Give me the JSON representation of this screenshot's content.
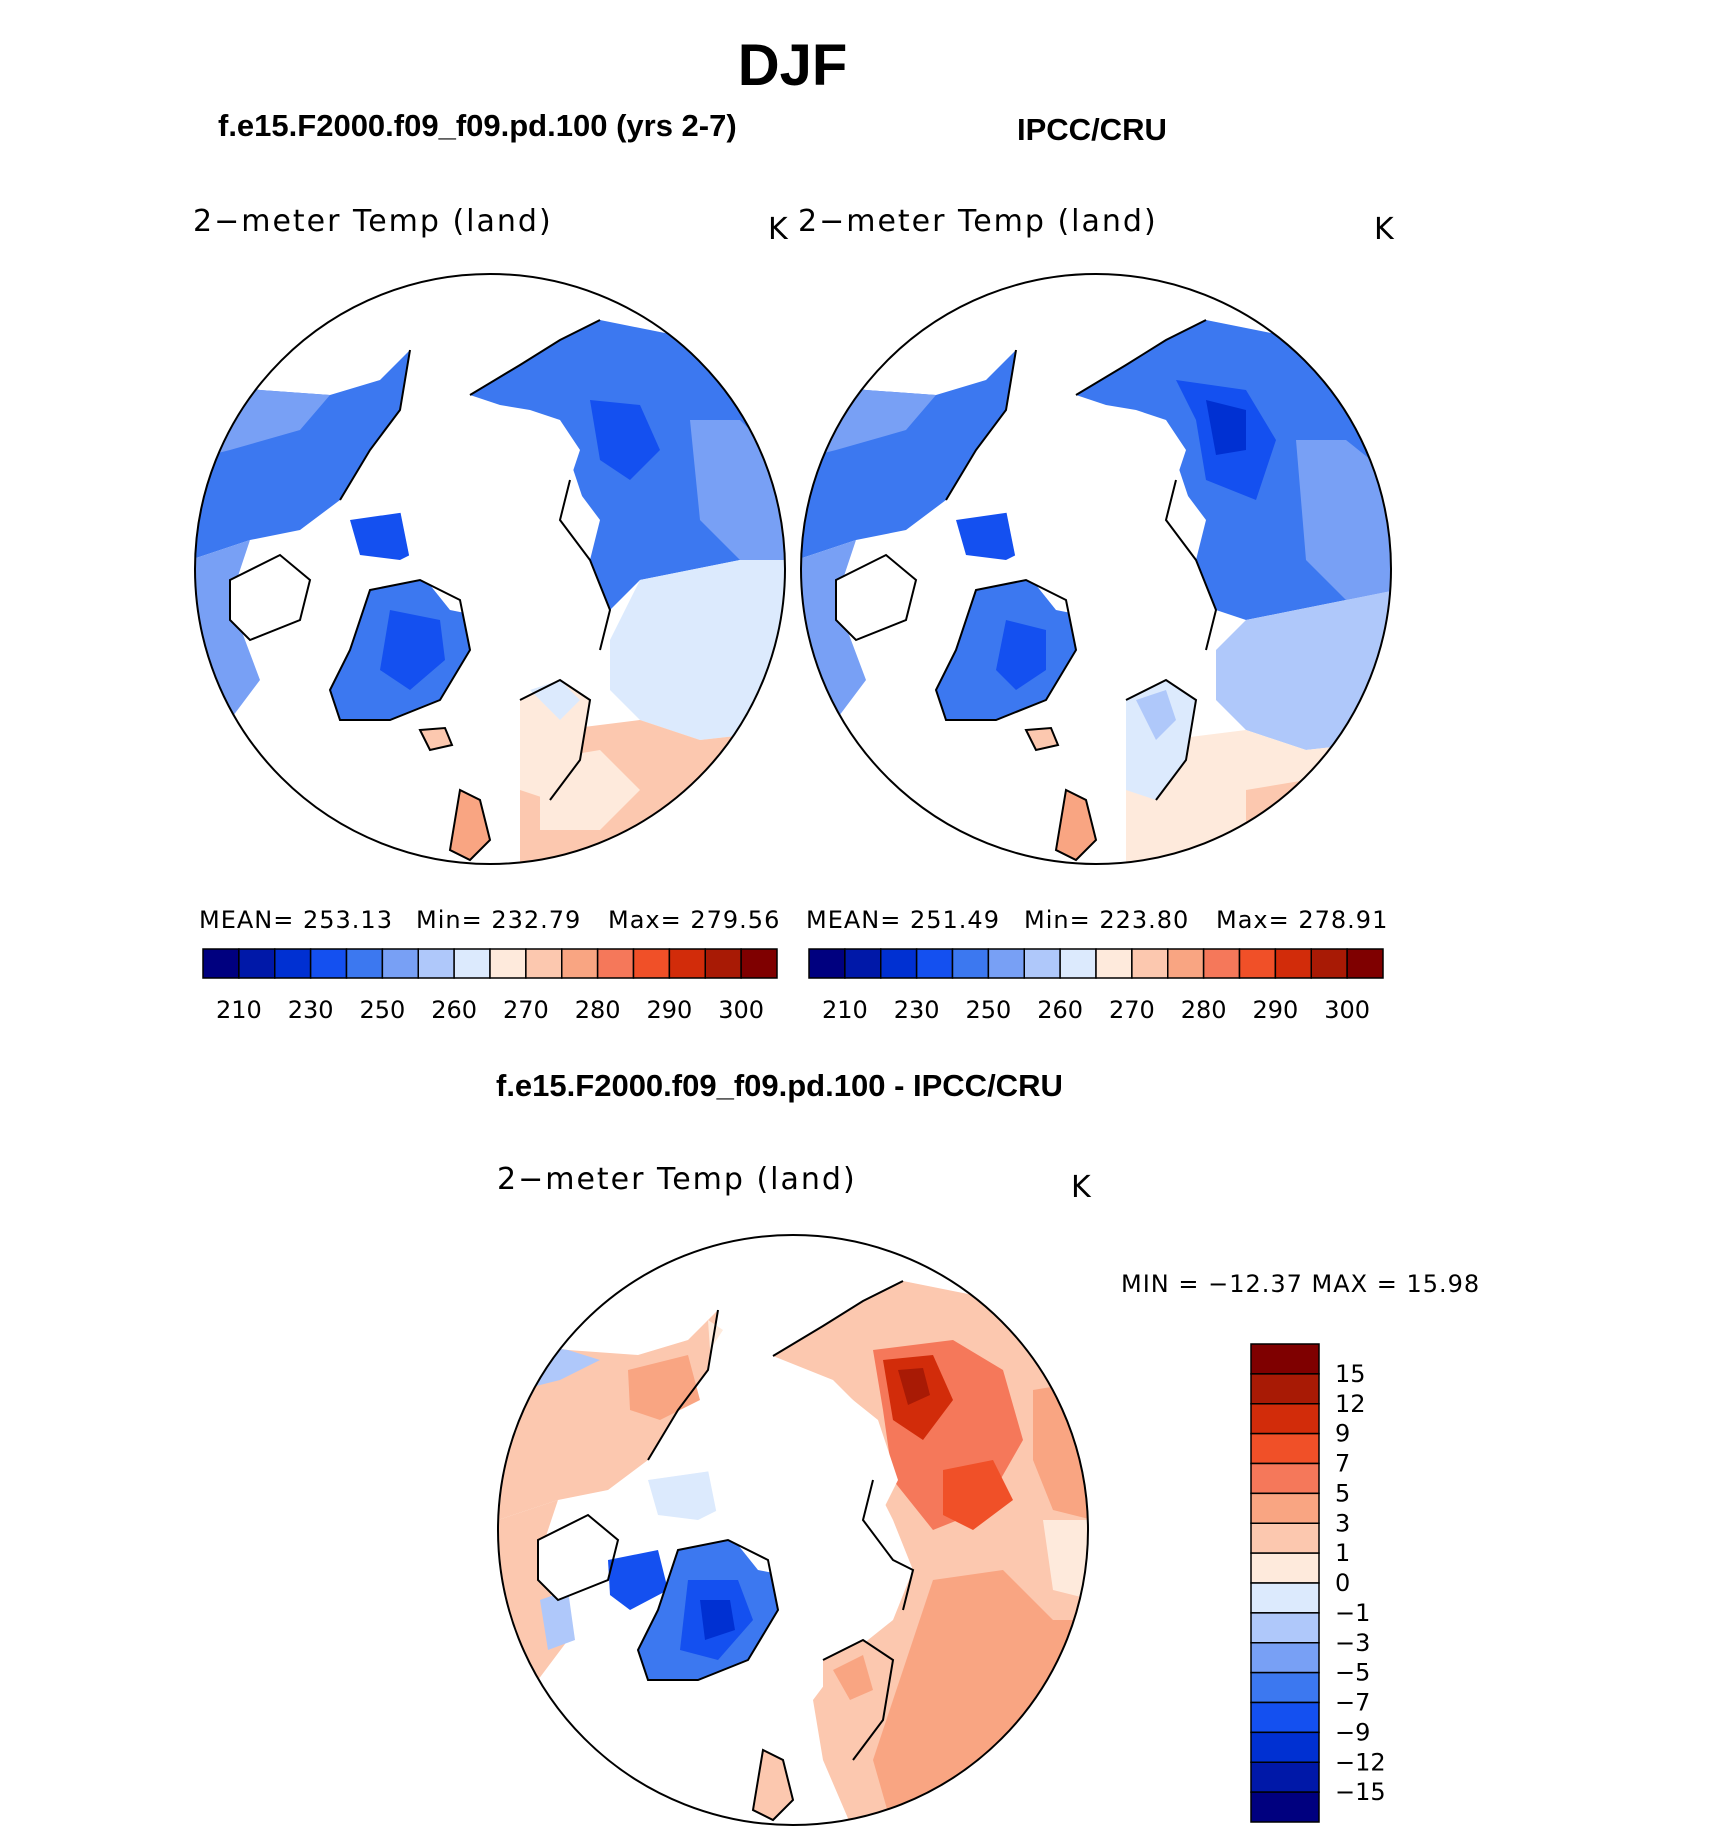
{
  "title": "DJF",
  "panels": [
    {
      "id": "model",
      "case_title": "f.e15.F2000.f09_f09.pd.100 (yrs 2-7)",
      "variable": "2−meter Temp (land)",
      "units": "K",
      "stats": {
        "mean": "MEAN= 253.13",
        "min": "Min= 232.79",
        "max": "Max= 279.56"
      },
      "colorbar_ticks": [
        "210",
        "230",
        "250",
        "260",
        "270",
        "280",
        "290",
        "300"
      ]
    },
    {
      "id": "obs",
      "case_title": "IPCC/CRU",
      "variable": "2−meter Temp (land)",
      "units": "K",
      "stats": {
        "mean": "MEAN= 251.49",
        "min": "Min= 223.80",
        "max": "Max= 278.91"
      },
      "colorbar_ticks": [
        "210",
        "230",
        "250",
        "260",
        "270",
        "280",
        "290",
        "300"
      ]
    }
  ],
  "difference": {
    "title": "f.e15.F2000.f09_f09.pd.100 - IPCC/CRU",
    "variable": "2−meter Temp (land)",
    "units": "K",
    "minmax": "MIN = −12.37 MAX = 15.98",
    "colorbar_ticks": [
      "15",
      "12",
      "9",
      "7",
      "5",
      "3",
      "1",
      "0",
      "−1",
      "−3",
      "−5",
      "−7",
      "−9",
      "−12",
      "−15"
    ]
  },
  "palettes": {
    "absolute": [
      "#00007f",
      "#0018a8",
      "#0030d2",
      "#1450f0",
      "#3c78f0",
      "#78a0f5",
      "#afc8fa",
      "#dceafd",
      "#feeadc",
      "#fcc8af",
      "#f9a582",
      "#f5785a",
      "#f05028",
      "#d22c0a",
      "#a81a05",
      "#7f0000"
    ],
    "difference": [
      "#7f0000",
      "#a81a05",
      "#d22c0a",
      "#f05028",
      "#f5785a",
      "#f9a582",
      "#fcc8af",
      "#feeadc",
      "#dceafd",
      "#afc8fa",
      "#78a0f5",
      "#3c78f0",
      "#1450f0",
      "#0030d2",
      "#0018a8",
      "#00007f"
    ]
  }
}
